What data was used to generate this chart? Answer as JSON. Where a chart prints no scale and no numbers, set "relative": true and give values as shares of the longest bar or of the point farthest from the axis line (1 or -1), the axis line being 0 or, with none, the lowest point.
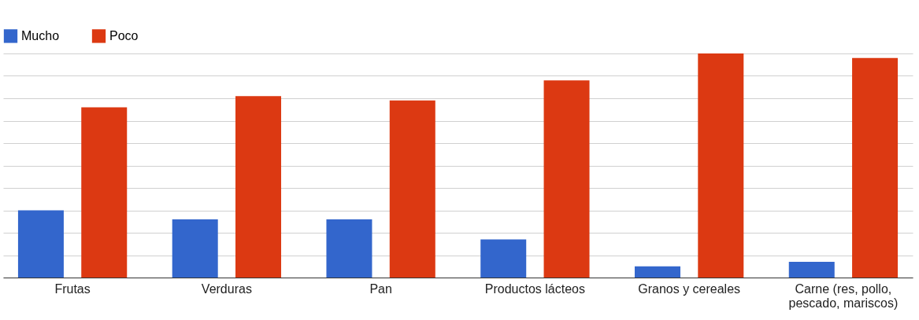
{
  "chart_data": {
    "type": "bar",
    "relative": true,
    "categories": [
      "Frutas",
      "Verduras",
      "Pan",
      "Productos lácteos",
      "Granos y cereales",
      "Carne (res, pollo, pescado, mariscos)"
    ],
    "series": [
      {
        "name": "Mucho",
        "color": "#3366cc",
        "values": [
          0.3,
          0.26,
          0.26,
          0.17,
          0.05,
          0.07
        ]
      },
      {
        "name": "Poco",
        "color": "#dc3912",
        "values": [
          0.76,
          0.81,
          0.79,
          0.88,
          1,
          0.98
        ]
      }
    ],
    "grid": "y",
    "legend": "top left"
  }
}
